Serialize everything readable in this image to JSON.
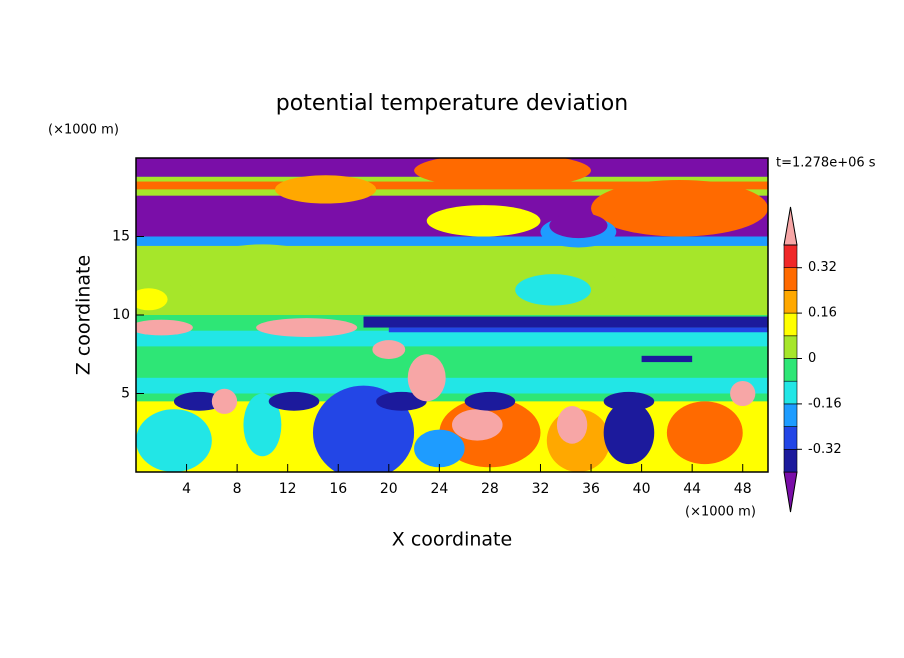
{
  "chart_data": {
    "type": "contour",
    "title": "potential temperature deviation",
    "xlabel": "X coordinate",
    "ylabel": "Z coordinate",
    "x_unit_label": "(×1000 m)",
    "y_unit_label": "(×1000 m)",
    "time_label": "t=1.278e+06 s",
    "xlim": [
      0,
      50
    ],
    "ylim": [
      0,
      20
    ],
    "xticks": [
      4,
      8,
      12,
      16,
      20,
      24,
      28,
      32,
      36,
      40,
      44,
      48
    ],
    "yticks": [
      5,
      10,
      15
    ],
    "levels": [
      -0.4,
      -0.32,
      -0.24,
      -0.16,
      -0.08,
      0,
      0.08,
      0.16,
      0.24,
      0.32,
      0.4
    ],
    "colors": [
      "#7a0ea8",
      "#1c1a9c",
      "#2346e6",
      "#1e9cff",
      "#22e6e6",
      "#2ee676",
      "#a6e62a",
      "#ffff00",
      "#ffa800",
      "#ff6a00",
      "#f02828",
      "#f7a6a6"
    ],
    "colorbar_ticks": [
      0.32,
      0.16,
      0,
      -0.16,
      -0.32
    ]
  }
}
